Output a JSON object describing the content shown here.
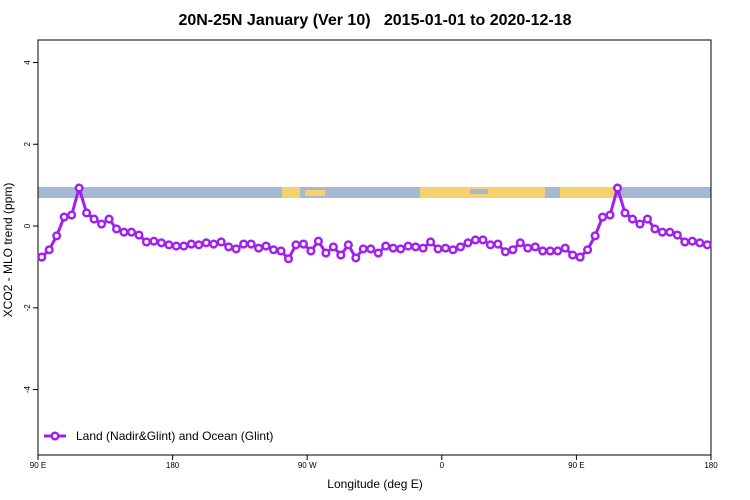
{
  "chart_data": {
    "type": "line",
    "title": "20N-25N January (Ver 10)   2015-01-01 to 2020-12-18",
    "x_label": "Longitude (deg E)",
    "y_label": "XCO2 - MLO trend (ppm)",
    "xlim": [
      90,
      540
    ],
    "xticks": [
      {
        "value": 90,
        "label": "90 E"
      },
      {
        "value": 180,
        "label": "180"
      },
      {
        "value": 270,
        "label": "90 W"
      },
      {
        "value": 360,
        "label": "0"
      },
      {
        "value": 450,
        "label": "90 E"
      },
      {
        "value": 540,
        "label": "180"
      }
    ],
    "ylim": [
      -5.6,
      4.55
    ],
    "yticks": [
      -4,
      -2,
      0,
      2,
      4
    ],
    "legend": "bottom-left",
    "x": [
      92.5,
      97.5,
      102.5,
      107.5,
      112.5,
      117.5,
      122.5,
      127.5,
      132.5,
      137.5,
      142.5,
      147.5,
      152.5,
      157.5,
      162.5,
      167.5,
      172.5,
      177.5,
      182.5,
      187.5,
      192.5,
      197.5,
      202.5,
      207.5,
      212.5,
      217.5,
      222.5,
      227.5,
      232.5,
      237.5,
      242.5,
      247.5,
      252.5,
      257.5,
      262.5,
      267.5,
      272.5,
      277.5,
      282.5,
      287.5,
      292.5,
      297.5,
      302.5,
      307.5,
      312.5,
      317.5,
      322.5,
      327.5,
      332.5,
      337.5,
      342.5,
      347.5,
      352.5,
      357.5,
      362.5,
      367.5,
      372.5,
      377.5,
      382.5,
      387.5,
      392.5,
      397.5,
      402.5,
      407.5,
      412.5,
      417.5,
      422.5,
      427.5,
      432.5,
      437.5,
      442.5,
      447.5,
      452.5,
      457.5,
      462.5,
      467.5,
      472.5,
      477.5,
      482.5,
      487.5,
      492.5,
      497.5,
      502.5,
      507.5,
      512.5,
      517.5,
      522.5,
      527.5,
      532.5,
      537.5
    ],
    "series": [
      {
        "name": "Land (Nadir&Glint) and Ocean (Glint)",
        "color": "#a020f0",
        "values": [
          -0.76,
          -0.58,
          -0.24,
          0.22,
          0.27,
          0.93,
          0.32,
          0.17,
          0.05,
          0.17,
          -0.07,
          -0.15,
          -0.15,
          -0.22,
          -0.39,
          -0.37,
          -0.41,
          -0.46,
          -0.49,
          -0.49,
          -0.44,
          -0.46,
          -0.41,
          -0.44,
          -0.39,
          -0.51,
          -0.56,
          -0.44,
          -0.44,
          -0.54,
          -0.49,
          -0.58,
          -0.61,
          -0.8,
          -0.46,
          -0.44,
          -0.61,
          -0.37,
          -0.66,
          -0.51,
          -0.71,
          -0.46,
          -0.78,
          -0.56,
          -0.56,
          -0.66,
          -0.49,
          -0.54,
          -0.56,
          -0.49,
          -0.51,
          -0.54,
          -0.39,
          -0.56,
          -0.54,
          -0.58,
          -0.51,
          -0.41,
          -0.34,
          -0.34,
          -0.46,
          -0.44,
          -0.63,
          -0.58,
          -0.41,
          -0.54,
          -0.51,
          -0.61,
          -0.61,
          -0.61,
          -0.54,
          -0.71,
          -0.76,
          -0.58,
          -0.24,
          0.22,
          0.27,
          0.93,
          0.32,
          0.17,
          0.05,
          0.17,
          -0.07,
          -0.15,
          -0.15,
          -0.22,
          -0.39,
          -0.37,
          -0.41,
          -0.46
        ]
      }
    ]
  }
}
